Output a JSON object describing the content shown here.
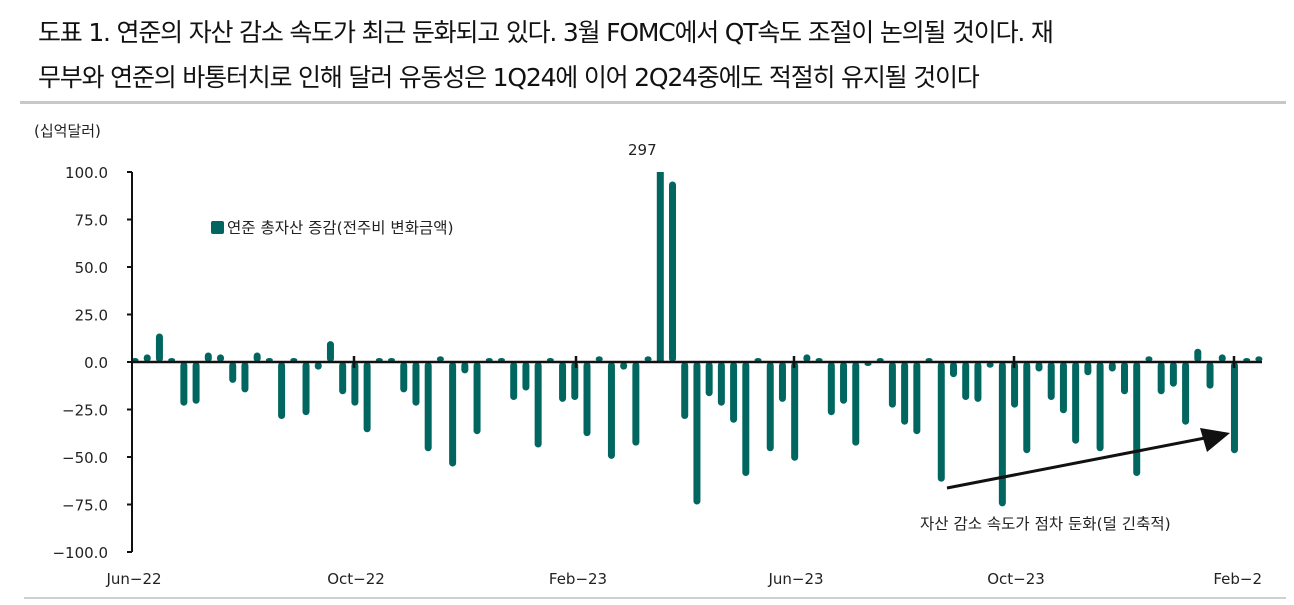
{
  "title": {
    "line1": "도표 1. 연준의 자산 감소 속도가 최근 둔화되고 있다. 3월 FOMC에서 QT속도 조절이 논의될 것이다. 재",
    "line2": "무부와 연준의 바통터치로 인해 달러 유동성은 1Q24에 이어 2Q24중에도 적절히 유지될 것이다"
  },
  "unit_label": "(십억달러)",
  "legend_label": "연준 총자산 증감(전주비 변화금액)",
  "annotation": "자산 감소 속도가 점차 둔화(덜 긴축적)",
  "peak_label": "297",
  "colors": {
    "bar": "#00665f",
    "axis": "#111111",
    "rule": "#c8c8c8"
  },
  "chart_data": {
    "type": "bar",
    "title": "도표 1. 연준의 자산 감소 속도가 최근 둔화되고 있다. 3월 FOMC에서 QT속도 조절이 논의될 것이다. 재무부와 연준의 바통터치로 인해 달러 유동성은 1Q24에 이어 2Q24중에도 적절히 유지될 것이다",
    "xlabel": "",
    "ylabel": "(십억달러)",
    "ylim": [
      -100,
      100
    ],
    "yticks": [
      100.0,
      75.0,
      50.0,
      25.0,
      0.0,
      -25.0,
      -50.0,
      -75.0,
      -100.0
    ],
    "ytick_labels": [
      "100.0",
      "75.0",
      "50.0",
      "25.0",
      "0.0",
      "−25.0",
      "−50.0",
      "−75.0",
      "−100.0"
    ],
    "xtick_labels": [
      "Jun−22",
      "Oct−22",
      "Feb−23",
      "Jun−23",
      "Oct−23",
      "Feb−2"
    ],
    "grid": false,
    "legend_position": "upper-left",
    "annotations": [
      {
        "text": "297",
        "target": "truncated peak bar (Mar-23)"
      },
      {
        "text": "자산 감소 속도가 점차 둔화(덜 긴축적)",
        "type": "arrow",
        "direction": "up-right"
      }
    ],
    "series": [
      {
        "name": "연준 총자산 증감(전주비 변화금액)",
        "frequency": "weekly",
        "values": [
          1,
          4,
          15,
          2,
          -23,
          -22,
          5,
          4,
          -11,
          -16,
          5,
          2,
          -30,
          2,
          -28,
          -4,
          11,
          -17,
          -23,
          -37,
          0,
          0,
          -16,
          -23,
          -47,
          3,
          -55,
          -6,
          -38,
          1,
          0,
          -20,
          -15,
          -45,
          2,
          -21,
          -20,
          -39,
          3,
          -51,
          -4,
          -44,
          3,
          297,
          95,
          -30,
          -75,
          -18,
          -23,
          -32,
          -60,
          0,
          -47,
          -21,
          -52,
          4,
          0,
          -28,
          -22,
          -44,
          -2,
          0,
          -24,
          -33,
          -38,
          2,
          -63,
          -8,
          -20,
          -21,
          -3,
          -76,
          -24,
          -48,
          -5,
          -20,
          -27,
          -43,
          -7,
          -47,
          -5,
          -17,
          -60,
          3,
          -17,
          -13,
          -33,
          7,
          -14,
          4,
          -48,
          2,
          3
        ]
      }
    ]
  }
}
